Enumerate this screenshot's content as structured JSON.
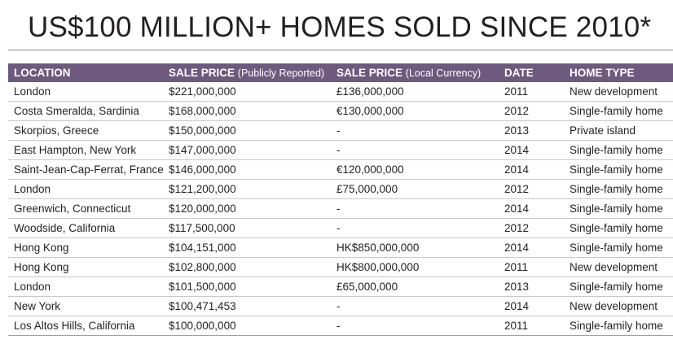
{
  "title": "US$100 MILLION+ HOMES SOLD SINCE 2010*",
  "table": {
    "headers": {
      "location": "LOCATION",
      "sale_price_usd": "SALE PRICE",
      "sale_price_usd_sub": "(Publicly Reported)",
      "sale_price_local": "SALE PRICE",
      "sale_price_local_sub": "(Local Currency)",
      "date": "DATE",
      "home_type": "HOME TYPE"
    },
    "rows": [
      {
        "location": "London",
        "usd": "$221,000,000",
        "local": "£136,000,000",
        "date": "2011",
        "type": "New development"
      },
      {
        "location": "Costa Smeralda, Sardinia",
        "usd": "$168,000,000",
        "local": "€130,000,000",
        "date": "2012",
        "type": "Single-family home"
      },
      {
        "location": "Skorpios, Greece",
        "usd": "$150,000,000",
        "local": "-",
        "date": "2013",
        "type": "Private island"
      },
      {
        "location": "East Hampton, New York",
        "usd": "$147,000,000",
        "local": "-",
        "date": "2014",
        "type": "Single-family home"
      },
      {
        "location": "Saint-Jean-Cap-Ferrat, France",
        "usd": "$146,000,000",
        "local": "€120,000,000",
        "date": "2014",
        "type": "Single-family home"
      },
      {
        "location": "London",
        "usd": "$121,200,000",
        "local": "£75,000,000",
        "date": "2012",
        "type": "Single-family home"
      },
      {
        "location": "Greenwich, Connecticut",
        "usd": "$120,000,000",
        "local": "-",
        "date": "2014",
        "type": "Single-family home"
      },
      {
        "location": "Woodside, California",
        "usd": "$117,500,000",
        "local": "-",
        "date": "2012",
        "type": "Single-family home"
      },
      {
        "location": "Hong Kong",
        "usd": "$104,151,000",
        "local": "HK$850,000,000",
        "date": "2014",
        "type": "Single-family home"
      },
      {
        "location": "Hong Kong",
        "usd": "$102,800,000",
        "local": "HK$800,000,000",
        "date": "2011",
        "type": "New development"
      },
      {
        "location": "London",
        "usd": "$101,500,000",
        "local": "£65,000,000",
        "date": "2013",
        "type": "Single-family home"
      },
      {
        "location": "New York",
        "usd": "$100,471,453",
        "local": "-",
        "date": "2014",
        "type": "New development"
      },
      {
        "location": "Los Altos Hills, California",
        "usd": "$100,000,000",
        "local": "-",
        "date": "2011",
        "type": "Single-family home"
      }
    ]
  },
  "colors": {
    "header_background": "#6e5a7e",
    "header_text": "#ffffff",
    "body_text": "#231f20",
    "row_divider": "#c8c8c8"
  }
}
